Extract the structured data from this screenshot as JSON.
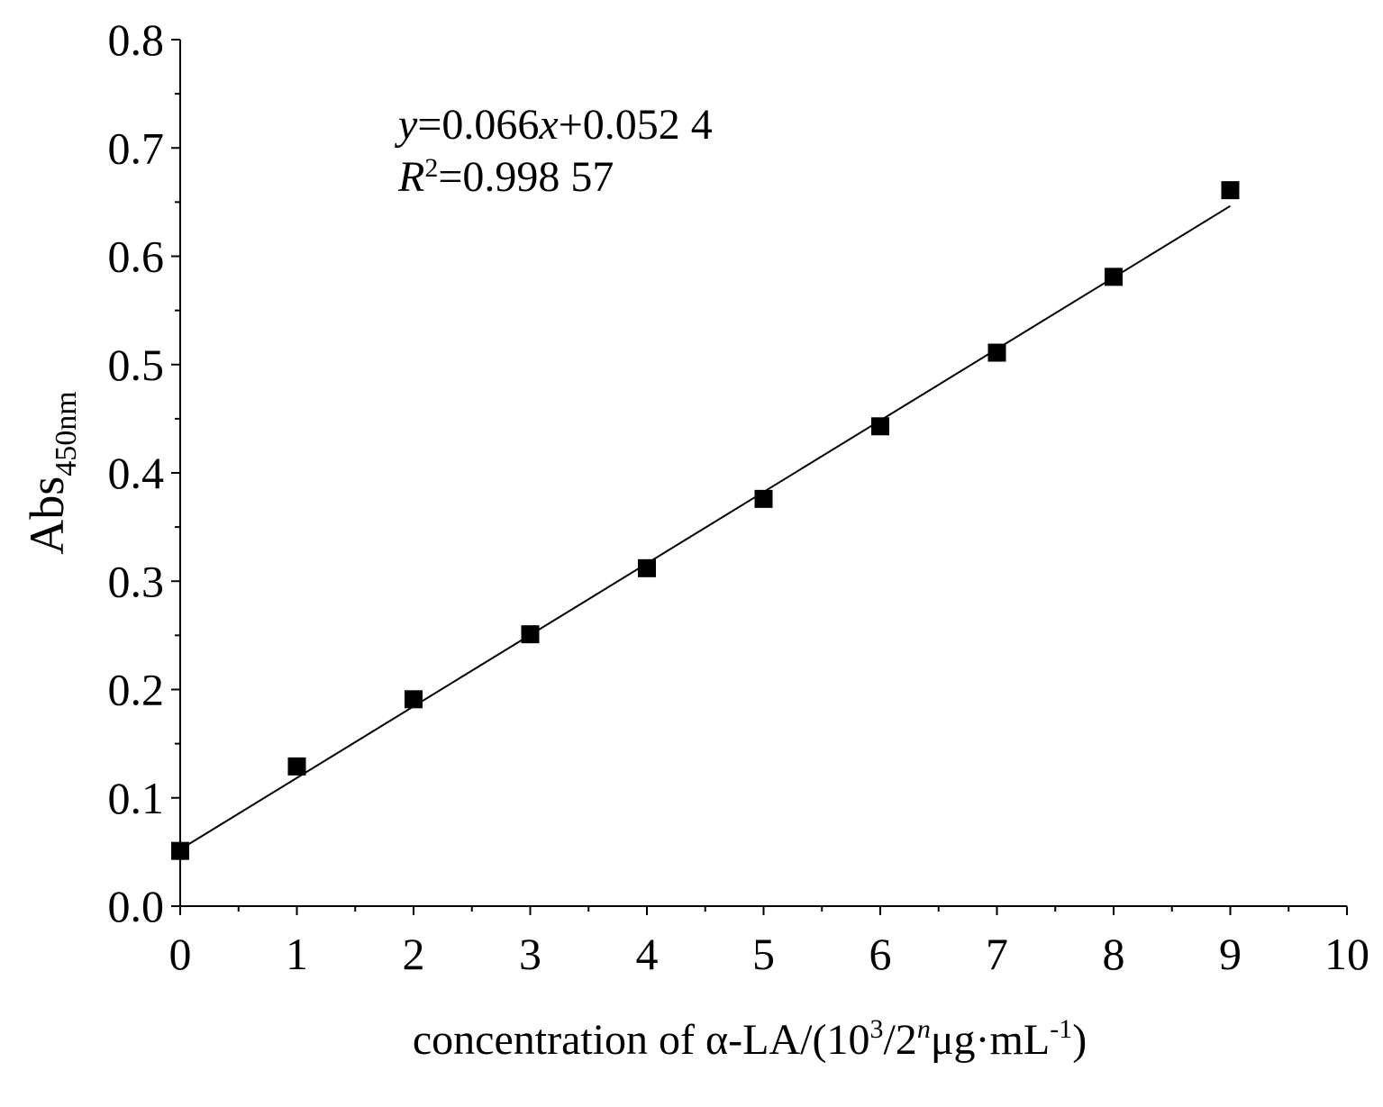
{
  "chart_data": {
    "type": "scatter",
    "title": "",
    "xlabel": {
      "main": "concentration of α-LA/(10",
      "sup1": "3",
      "mid": "/2",
      "sup2": "n",
      "tail": "μg·mL",
      "sup3": "-1",
      "end": ")"
    },
    "ylabel": {
      "main": "Abs",
      "sub": "450nm"
    },
    "xlim": [
      0,
      10
    ],
    "ylim": [
      0.0,
      0.8
    ],
    "x_ticks": [
      "0",
      "1",
      "2",
      "3",
      "4",
      "5",
      "6",
      "7",
      "8",
      "9",
      "10"
    ],
    "y_ticks": [
      "0.0",
      "0.1",
      "0.2",
      "0.3",
      "0.4",
      "0.5",
      "0.6",
      "0.7",
      "0.8"
    ],
    "grid": false,
    "series": [
      {
        "x": [
          0,
          1,
          2,
          3,
          4,
          5,
          6,
          7,
          8,
          9
        ],
        "values": [
          0.051,
          0.129,
          0.191,
          0.251,
          0.312,
          0.376,
          0.443,
          0.511,
          0.581,
          0.661
        ],
        "marker": "square",
        "color": "#000000"
      }
    ],
    "fit_line": {
      "slope": 0.066,
      "intercept": 0.0524,
      "x_range": [
        0,
        9
      ],
      "color": "#000000"
    },
    "annotation": {
      "eq_y": "y",
      "eq_rest1": "=0.066",
      "eq_x": "x",
      "eq_rest2": "+0.052 4",
      "r_R": "R",
      "r_sup": "2",
      "r_rest": "=0.998 57"
    }
  }
}
